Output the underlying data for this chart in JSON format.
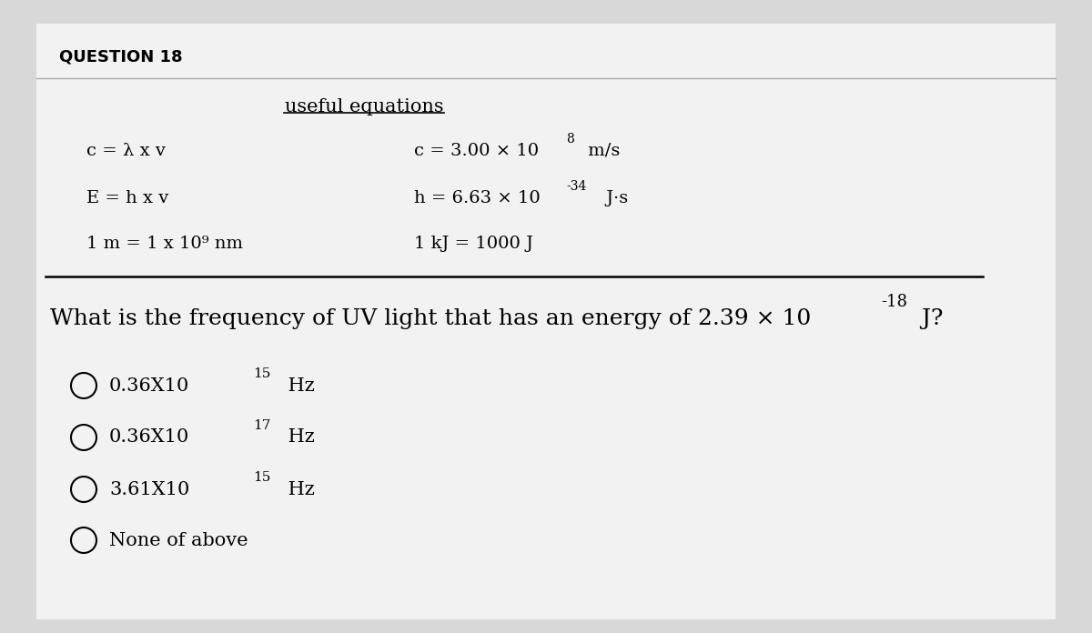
{
  "background_color": "#d8d8d8",
  "inner_bg_color": "#f2f2f2",
  "question_label": "QUESTION 18",
  "useful_eq_title": "useful equations",
  "eq_left": [
    "c = λ x v",
    "E = h x v",
    "1 m = 1 x 10⁹ nm"
  ],
  "eq_right_prefix": [
    "c = 3.00 × 10",
    "h = 6.63 × 10",
    "1 kJ = 1000 J"
  ],
  "eq_right_exp": [
    "8",
    "-34",
    ""
  ],
  "eq_right_suffix": [
    " m/s",
    " J·s",
    ""
  ],
  "question_prefix": "What is the frequency of UV light that has an energy of 2.39 × 10",
  "question_exp": "-18",
  "question_suffix": " J?",
  "options": [
    "0.36X10",
    "0.36X10",
    "3.61X10",
    "None of above"
  ],
  "option_exps": [
    "15",
    "17",
    "15",
    ""
  ],
  "option_units": [
    " Hz",
    " Hz",
    " Hz",
    ""
  ],
  "title_fontsize": 13,
  "eq_fontsize": 14,
  "question_fontsize": 18,
  "option_fontsize": 15
}
